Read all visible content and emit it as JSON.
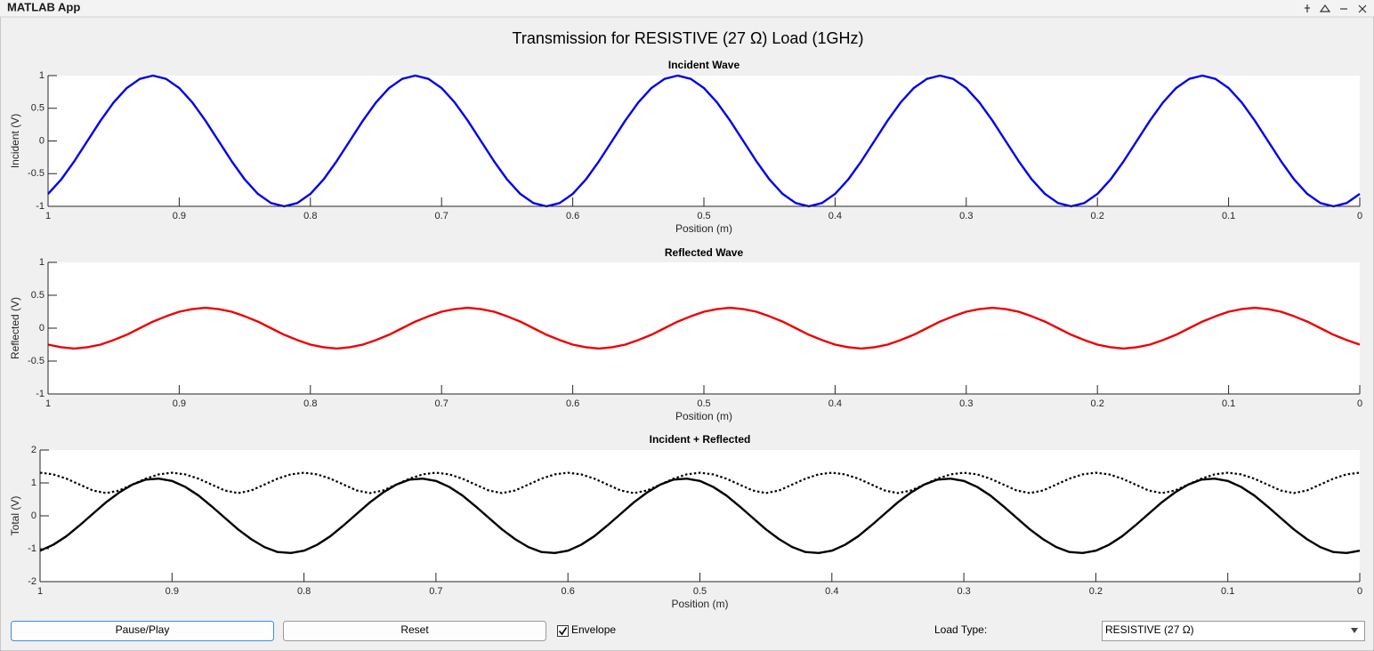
{
  "window": {
    "title": "MATLAB App"
  },
  "app": {
    "title": "Transmission for RESISTIVE (27 Ω) Load (1GHz)"
  },
  "chart_data": [
    {
      "type": "line",
      "title": "Incident Wave",
      "xlabel": "Position (m)",
      "ylabel": "Incident (V)",
      "x": [
        1,
        0.99,
        0.98,
        0.97,
        0.96,
        0.95,
        0.94,
        0.93,
        0.92,
        0.91,
        0.9,
        0.89,
        0.88,
        0.87,
        0.86,
        0.85,
        0.84,
        0.83,
        0.82,
        0.81,
        0.8,
        0.79,
        0.78,
        0.77,
        0.76,
        0.75,
        0.74,
        0.73,
        0.72,
        0.71,
        0.7,
        0.69,
        0.68,
        0.67,
        0.66,
        0.65,
        0.64,
        0.63,
        0.62,
        0.61,
        0.6,
        0.59,
        0.58,
        0.57,
        0.56,
        0.55,
        0.54,
        0.53,
        0.52,
        0.51,
        0.5,
        0.49,
        0.48,
        0.47,
        0.46,
        0.45,
        0.44,
        0.43,
        0.42,
        0.41,
        0.4,
        0.39,
        0.38,
        0.37,
        0.36,
        0.35,
        0.34,
        0.33,
        0.32,
        0.31,
        0.3,
        0.29,
        0.28,
        0.27,
        0.26,
        0.25,
        0.24,
        0.23,
        0.22,
        0.21,
        0.2,
        0.19,
        0.18,
        0.17,
        0.16,
        0.15,
        0.14,
        0.13,
        0.12,
        0.11,
        0.1,
        0.09,
        0.08,
        0.07,
        0.06,
        0.05,
        0.04,
        0.03,
        0.02,
        0.01,
        0
      ],
      "xlim": [
        1,
        0
      ],
      "xticks": [
        1,
        0.9,
        0.8,
        0.7,
        0.6,
        0.5,
        0.4,
        0.3,
        0.2,
        0.1,
        0
      ],
      "ylim": [
        -1,
        1
      ],
      "yticks": [
        -1,
        -0.5,
        0,
        0.5,
        1
      ],
      "series": [
        {
          "color": "#0000ee",
          "style": "solid",
          "values": [
            -0.81,
            -0.59,
            -0.31,
            0,
            0.31,
            0.59,
            0.81,
            0.95,
            1,
            0.95,
            0.81,
            0.59,
            0.31,
            0,
            -0.31,
            -0.59,
            -0.81,
            -0.95,
            -1,
            -0.95,
            -0.81,
            -0.59,
            -0.31,
            0,
            0.31,
            0.59,
            0.81,
            0.95,
            1,
            0.95,
            0.81,
            0.59,
            0.31,
            0,
            -0.31,
            -0.59,
            -0.81,
            -0.95,
            -1,
            -0.95,
            -0.81,
            -0.59,
            -0.31,
            0,
            0.31,
            0.59,
            0.81,
            0.95,
            1,
            0.95,
            0.81,
            0.59,
            0.31,
            0,
            -0.31,
            -0.59,
            -0.81,
            -0.95,
            -1,
            -0.95,
            -0.81,
            -0.59,
            -0.31,
            0,
            0.31,
            0.59,
            0.81,
            0.95,
            1,
            0.95,
            0.81,
            0.59,
            0.31,
            0,
            -0.31,
            -0.59,
            -0.81,
            -0.95,
            -1,
            -0.95,
            -0.81,
            -0.59,
            -0.31,
            0,
            0.31,
            0.59,
            0.81,
            0.95,
            1,
            0.95,
            0.81,
            0.59,
            0.31,
            0,
            -0.31,
            -0.59,
            -0.81,
            -0.95,
            -1,
            -0.95,
            -0.81
          ]
        }
      ]
    },
    {
      "type": "line",
      "title": "Reflected Wave",
      "xlabel": "Position (m)",
      "ylabel": "Reflected (V)",
      "x": [
        1,
        0.99,
        0.98,
        0.97,
        0.96,
        0.95,
        0.94,
        0.93,
        0.92,
        0.91,
        0.9,
        0.89,
        0.88,
        0.87,
        0.86,
        0.85,
        0.84,
        0.83,
        0.82,
        0.81,
        0.8,
        0.79,
        0.78,
        0.77,
        0.76,
        0.75,
        0.74,
        0.73,
        0.72,
        0.71,
        0.7,
        0.69,
        0.68,
        0.67,
        0.66,
        0.65,
        0.64,
        0.63,
        0.62,
        0.61,
        0.6,
        0.59,
        0.58,
        0.57,
        0.56,
        0.55,
        0.54,
        0.53,
        0.52,
        0.51,
        0.5,
        0.49,
        0.48,
        0.47,
        0.46,
        0.45,
        0.44,
        0.43,
        0.42,
        0.41,
        0.4,
        0.39,
        0.38,
        0.37,
        0.36,
        0.35,
        0.34,
        0.33,
        0.32,
        0.31,
        0.3,
        0.29,
        0.28,
        0.27,
        0.26,
        0.25,
        0.24,
        0.23,
        0.22,
        0.21,
        0.2,
        0.19,
        0.18,
        0.17,
        0.16,
        0.15,
        0.14,
        0.13,
        0.12,
        0.11,
        0.1,
        0.09,
        0.08,
        0.07,
        0.06,
        0.05,
        0.04,
        0.03,
        0.02,
        0.01,
        0
      ],
      "xlim": [
        1,
        0
      ],
      "xticks": [
        1,
        0.9,
        0.8,
        0.7,
        0.6,
        0.5,
        0.4,
        0.3,
        0.2,
        0.1,
        0
      ],
      "ylim": [
        -1,
        1
      ],
      "yticks": [
        -1,
        -0.5,
        0,
        0.5,
        1
      ],
      "series": [
        {
          "color": "#ee0000",
          "style": "solid",
          "values": [
            -0.25,
            -0.29,
            -0.31,
            -0.29,
            -0.25,
            -0.18,
            -0.1,
            0,
            0.1,
            0.18,
            0.25,
            0.29,
            0.31,
            0.29,
            0.25,
            0.18,
            0.1,
            0,
            -0.1,
            -0.18,
            -0.25,
            -0.29,
            -0.31,
            -0.29,
            -0.25,
            -0.18,
            -0.1,
            0,
            0.1,
            0.18,
            0.25,
            0.29,
            0.31,
            0.29,
            0.25,
            0.18,
            0.1,
            0,
            -0.1,
            -0.18,
            -0.25,
            -0.29,
            -0.31,
            -0.29,
            -0.25,
            -0.18,
            -0.1,
            0,
            0.1,
            0.18,
            0.25,
            0.29,
            0.31,
            0.29,
            0.25,
            0.18,
            0.1,
            0,
            -0.1,
            -0.18,
            -0.25,
            -0.29,
            -0.31,
            -0.29,
            -0.25,
            -0.18,
            -0.1,
            0,
            0.1,
            0.18,
            0.25,
            0.29,
            0.31,
            0.29,
            0.25,
            0.18,
            0.1,
            0,
            -0.1,
            -0.18,
            -0.25,
            -0.29,
            -0.31,
            -0.29,
            -0.25,
            -0.18,
            -0.1,
            0,
            0.1,
            0.18,
            0.25,
            0.29,
            0.31,
            0.29,
            0.25,
            0.18,
            0.1,
            0,
            -0.1,
            -0.18,
            -0.25
          ]
        }
      ]
    },
    {
      "type": "line",
      "title": "Incident + Reflected",
      "xlabel": "Position (m)",
      "ylabel": "Total (V)",
      "x": [
        1,
        0.99,
        0.98,
        0.97,
        0.96,
        0.95,
        0.94,
        0.93,
        0.92,
        0.91,
        0.9,
        0.89,
        0.88,
        0.87,
        0.86,
        0.85,
        0.84,
        0.83,
        0.82,
        0.81,
        0.8,
        0.79,
        0.78,
        0.77,
        0.76,
        0.75,
        0.74,
        0.73,
        0.72,
        0.71,
        0.7,
        0.69,
        0.68,
        0.67,
        0.66,
        0.65,
        0.64,
        0.63,
        0.62,
        0.61,
        0.6,
        0.59,
        0.58,
        0.57,
        0.56,
        0.55,
        0.54,
        0.53,
        0.52,
        0.51,
        0.5,
        0.49,
        0.48,
        0.47,
        0.46,
        0.45,
        0.44,
        0.43,
        0.42,
        0.41,
        0.4,
        0.39,
        0.38,
        0.37,
        0.36,
        0.35,
        0.34,
        0.33,
        0.32,
        0.31,
        0.3,
        0.29,
        0.28,
        0.27,
        0.26,
        0.25,
        0.24,
        0.23,
        0.22,
        0.21,
        0.2,
        0.19,
        0.18,
        0.17,
        0.16,
        0.15,
        0.14,
        0.13,
        0.12,
        0.11,
        0.1,
        0.09,
        0.08,
        0.07,
        0.06,
        0.05,
        0.04,
        0.03,
        0.02,
        0.01,
        0
      ],
      "xlim": [
        1,
        0
      ],
      "xticks": [
        1,
        0.9,
        0.8,
        0.7,
        0.6,
        0.5,
        0.4,
        0.3,
        0.2,
        0.1,
        0
      ],
      "ylim": [
        -2,
        2
      ],
      "yticks": [
        -2,
        -1,
        0,
        1,
        2
      ],
      "series": [
        {
          "color": "#000000",
          "style": "solid",
          "values": [
            -1.06,
            -0.88,
            -0.62,
            -0.29,
            0.06,
            0.41,
            0.71,
            0.95,
            1.1,
            1.13,
            1.06,
            0.88,
            0.62,
            0.29,
            -0.06,
            -0.41,
            -0.71,
            -0.95,
            -1.1,
            -1.13,
            -1.06,
            -0.88,
            -0.62,
            -0.29,
            0.06,
            0.41,
            0.71,
            0.95,
            1.1,
            1.13,
            1.06,
            0.88,
            0.62,
            0.29,
            -0.06,
            -0.41,
            -0.71,
            -0.95,
            -1.1,
            -1.13,
            -1.06,
            -0.88,
            -0.62,
            -0.29,
            0.06,
            0.41,
            0.71,
            0.95,
            1.1,
            1.13,
            1.06,
            0.88,
            0.62,
            0.29,
            -0.06,
            -0.41,
            -0.71,
            -0.95,
            -1.1,
            -1.13,
            -1.06,
            -0.88,
            -0.62,
            -0.29,
            0.06,
            0.41,
            0.71,
            0.95,
            1.1,
            1.13,
            1.06,
            0.88,
            0.62,
            0.29,
            -0.06,
            -0.41,
            -0.71,
            -0.95,
            -1.1,
            -1.13,
            -1.06,
            -0.88,
            -0.62,
            -0.29,
            0.06,
            0.41,
            0.71,
            0.95,
            1.1,
            1.13,
            1.06,
            0.88,
            0.62,
            0.29,
            -0.06,
            -0.41,
            -0.71,
            -0.95,
            -1.1,
            -1.13,
            -1.06
          ]
        },
        {
          "color": "#000000",
          "style": "dotted",
          "values": [
            1.31,
            1.26,
            1.13,
            0.95,
            0.77,
            0.69,
            0.77,
            0.95,
            1.13,
            1.26,
            1.31,
            1.26,
            1.13,
            0.95,
            0.77,
            0.69,
            0.77,
            0.95,
            1.13,
            1.26,
            1.31,
            1.26,
            1.13,
            0.95,
            0.77,
            0.69,
            0.77,
            0.95,
            1.13,
            1.26,
            1.31,
            1.26,
            1.13,
            0.95,
            0.77,
            0.69,
            0.77,
            0.95,
            1.13,
            1.26,
            1.31,
            1.26,
            1.13,
            0.95,
            0.77,
            0.69,
            0.77,
            0.95,
            1.13,
            1.26,
            1.31,
            1.26,
            1.13,
            0.95,
            0.77,
            0.69,
            0.77,
            0.95,
            1.13,
            1.26,
            1.31,
            1.26,
            1.13,
            0.95,
            0.77,
            0.69,
            0.77,
            0.95,
            1.13,
            1.26,
            1.31,
            1.26,
            1.13,
            0.95,
            0.77,
            0.69,
            0.77,
            0.95,
            1.13,
            1.26,
            1.31,
            1.26,
            1.13,
            0.95,
            0.77,
            0.69,
            0.77,
            0.95,
            1.13,
            1.26,
            1.31,
            1.26,
            1.13,
            0.95,
            0.77,
            0.69,
            0.77,
            0.95,
            1.13,
            1.26,
            1.31
          ]
        }
      ]
    }
  ],
  "controls": {
    "pause_button": "Pause/Play",
    "reset_button": "Reset",
    "envelope_checkbox": {
      "label": "Envelope",
      "checked": true
    },
    "load_type": {
      "label": "Load Type:",
      "selected": "RESISTIVE (27 Ω)"
    }
  }
}
